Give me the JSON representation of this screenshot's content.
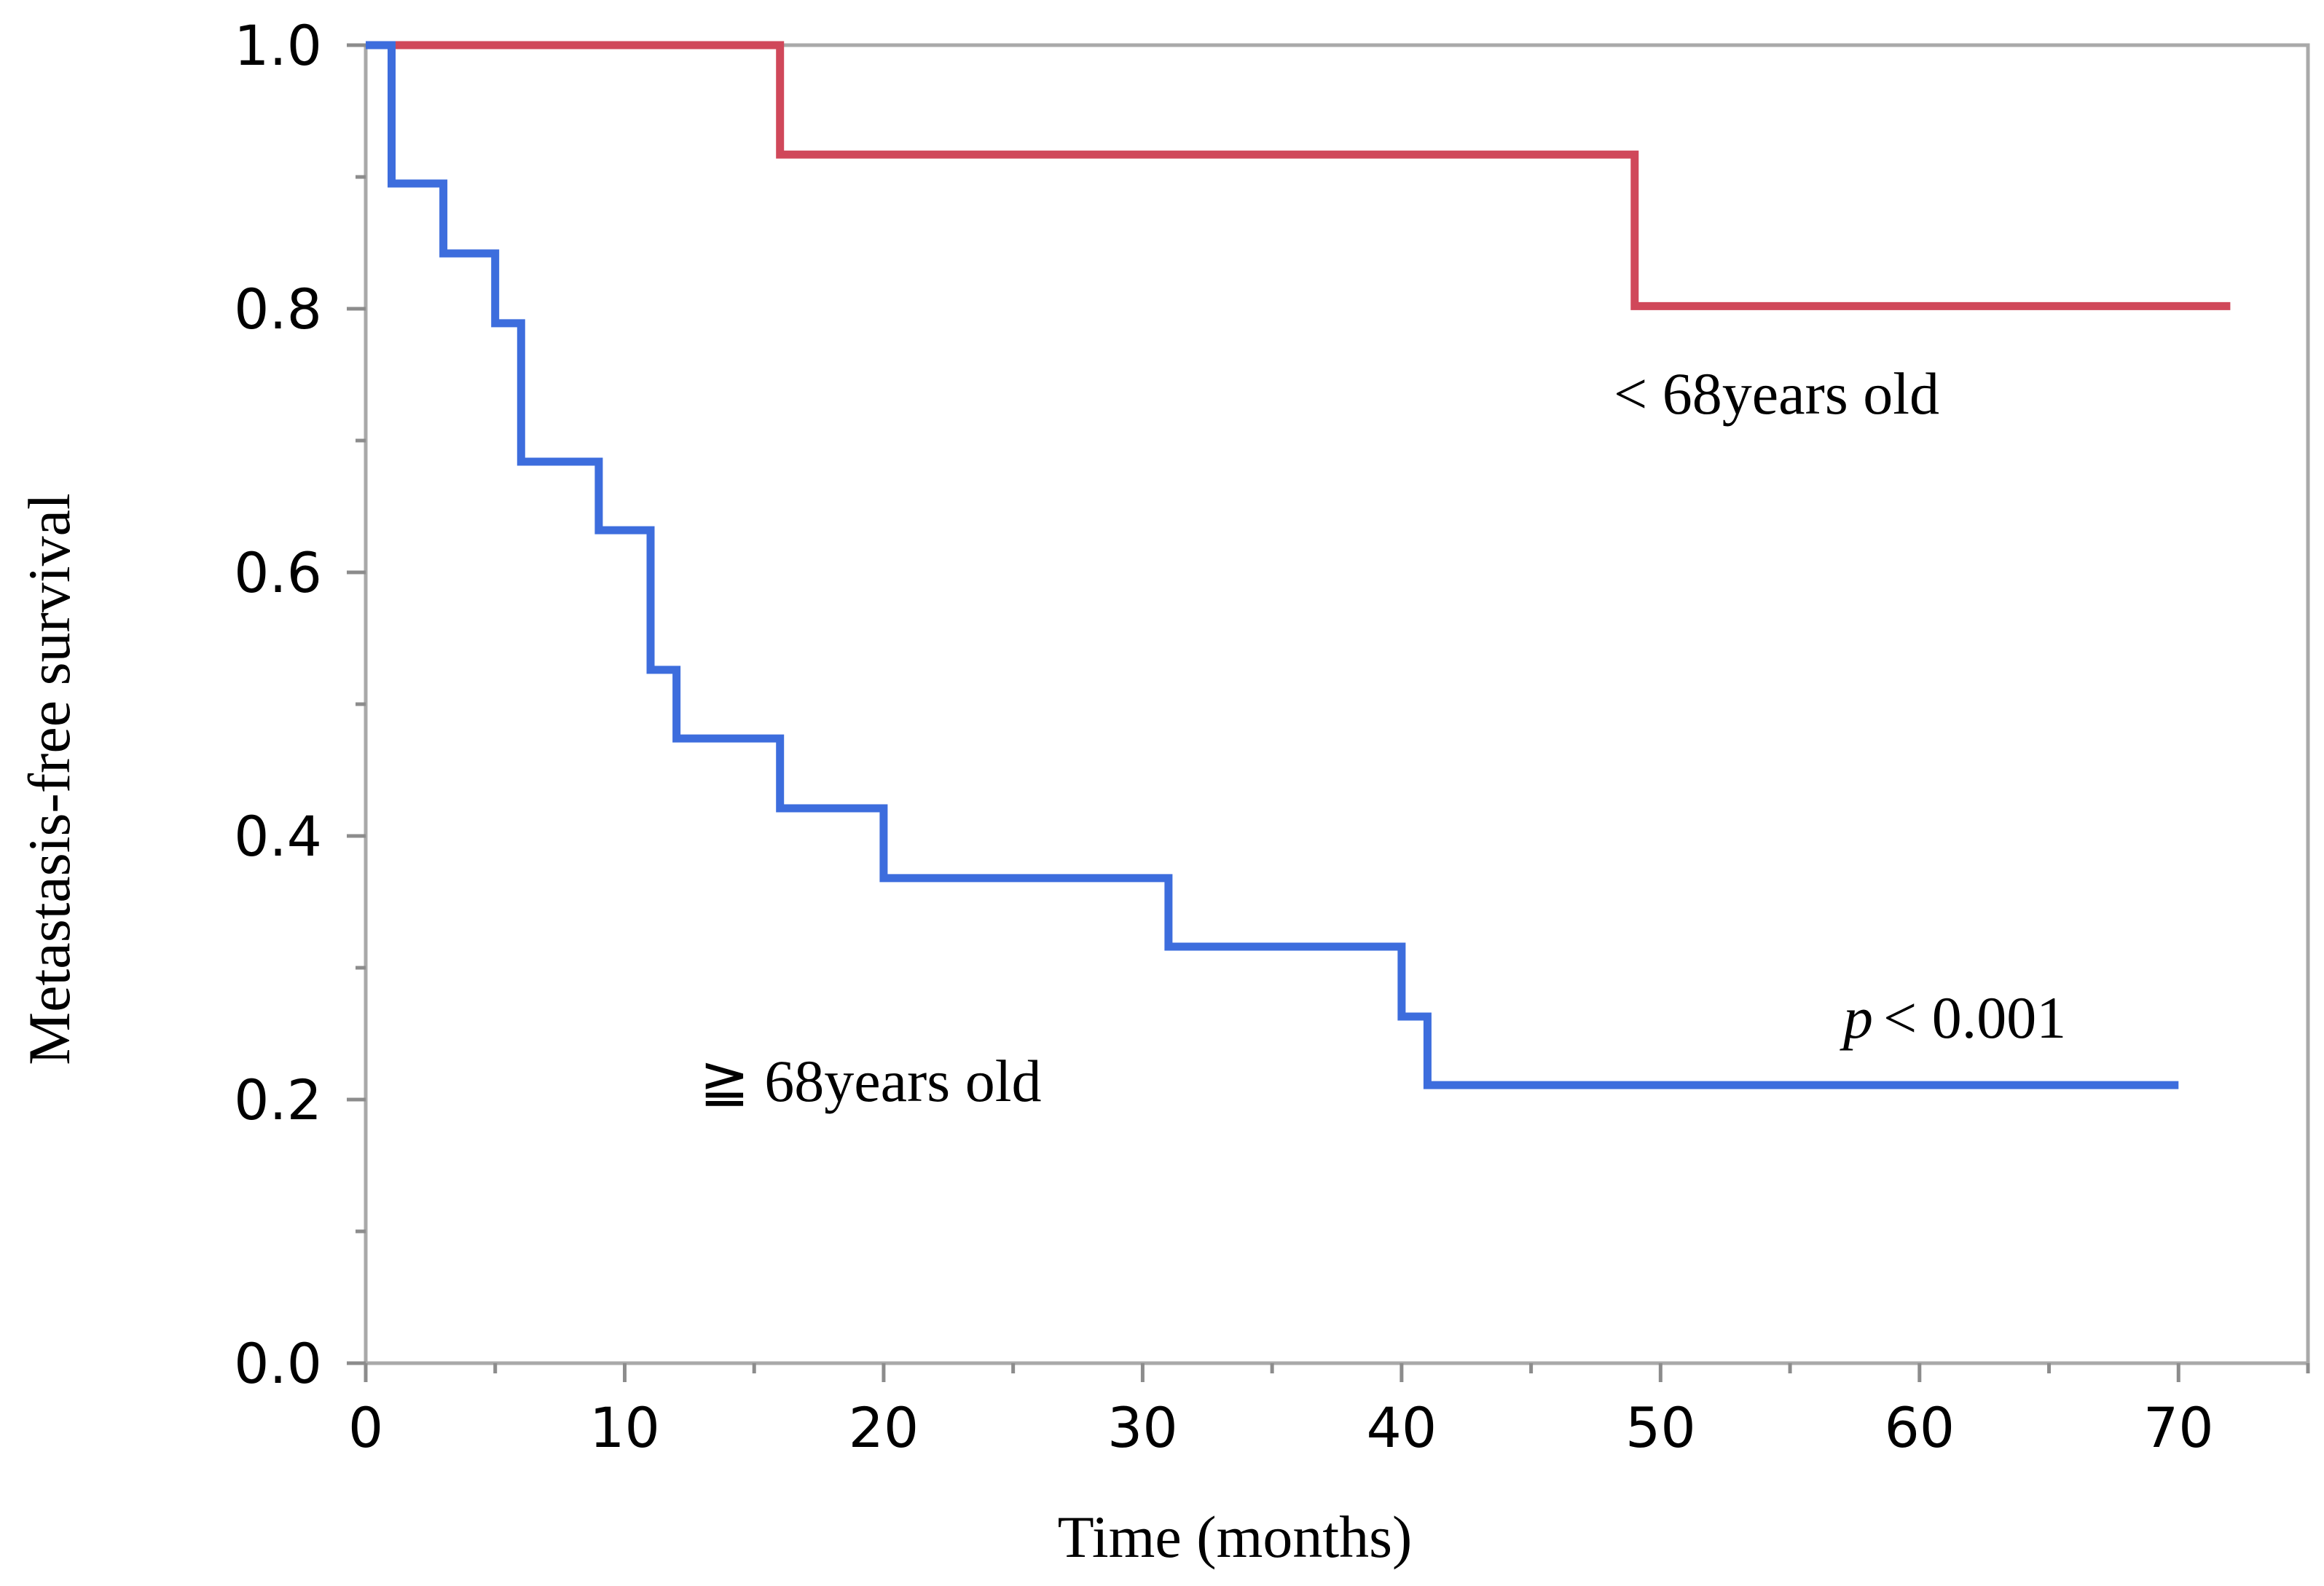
{
  "chart_data": {
    "type": "line",
    "subtype": "kaplan-meier step",
    "title": "",
    "xlabel": "Time (months)",
    "ylabel": "Metastasis-free survival",
    "xlim": [
      0,
      75
    ],
    "ylim": [
      0,
      1.0
    ],
    "x_ticks": [
      0,
      10,
      20,
      30,
      40,
      50,
      60,
      70
    ],
    "x_tick_labels": [
      "0",
      "10",
      "20",
      "30",
      "40",
      "50",
      "60",
      "70"
    ],
    "x_minor_ticks": [
      5,
      15,
      25,
      35,
      45,
      55,
      65,
      75
    ],
    "y_ticks": [
      0.0,
      0.2,
      0.4,
      0.6,
      0.8,
      1.0
    ],
    "y_tick_labels": [
      "0.0",
      "0.2",
      "0.4",
      "0.6",
      "0.8",
      "1.0"
    ],
    "y_minor_ticks": [
      0.1,
      0.3,
      0.5,
      0.7,
      0.9
    ],
    "grid": false,
    "series": [
      {
        "name": "< 68years old",
        "color": "#d0485a",
        "x": [
          0,
          16,
          16,
          49,
          49,
          72
        ],
        "y": [
          1.0,
          1.0,
          0.917,
          0.917,
          0.802,
          0.802
        ]
      },
      {
        "name": "≧ 68years old",
        "color": "#3d6ddd",
        "x": [
          0,
          1,
          1,
          3,
          3,
          5,
          5,
          6,
          6,
          9,
          9,
          11,
          11,
          12,
          12,
          16,
          16,
          20,
          20,
          31,
          31,
          40,
          40,
          41,
          41,
          70
        ],
        "y": [
          1.0,
          1.0,
          0.895,
          0.895,
          0.842,
          0.842,
          0.789,
          0.789,
          0.684,
          0.684,
          0.632,
          0.632,
          0.526,
          0.526,
          0.474,
          0.474,
          0.421,
          0.421,
          0.368,
          0.368,
          0.316,
          0.316,
          0.263,
          0.263,
          0.211,
          0.211
        ]
      }
    ],
    "annotations": {
      "young_label": "< 68years old",
      "old_label": "≧ 68years old",
      "p_symbol": "p",
      "p_value": "< 0.001"
    }
  }
}
